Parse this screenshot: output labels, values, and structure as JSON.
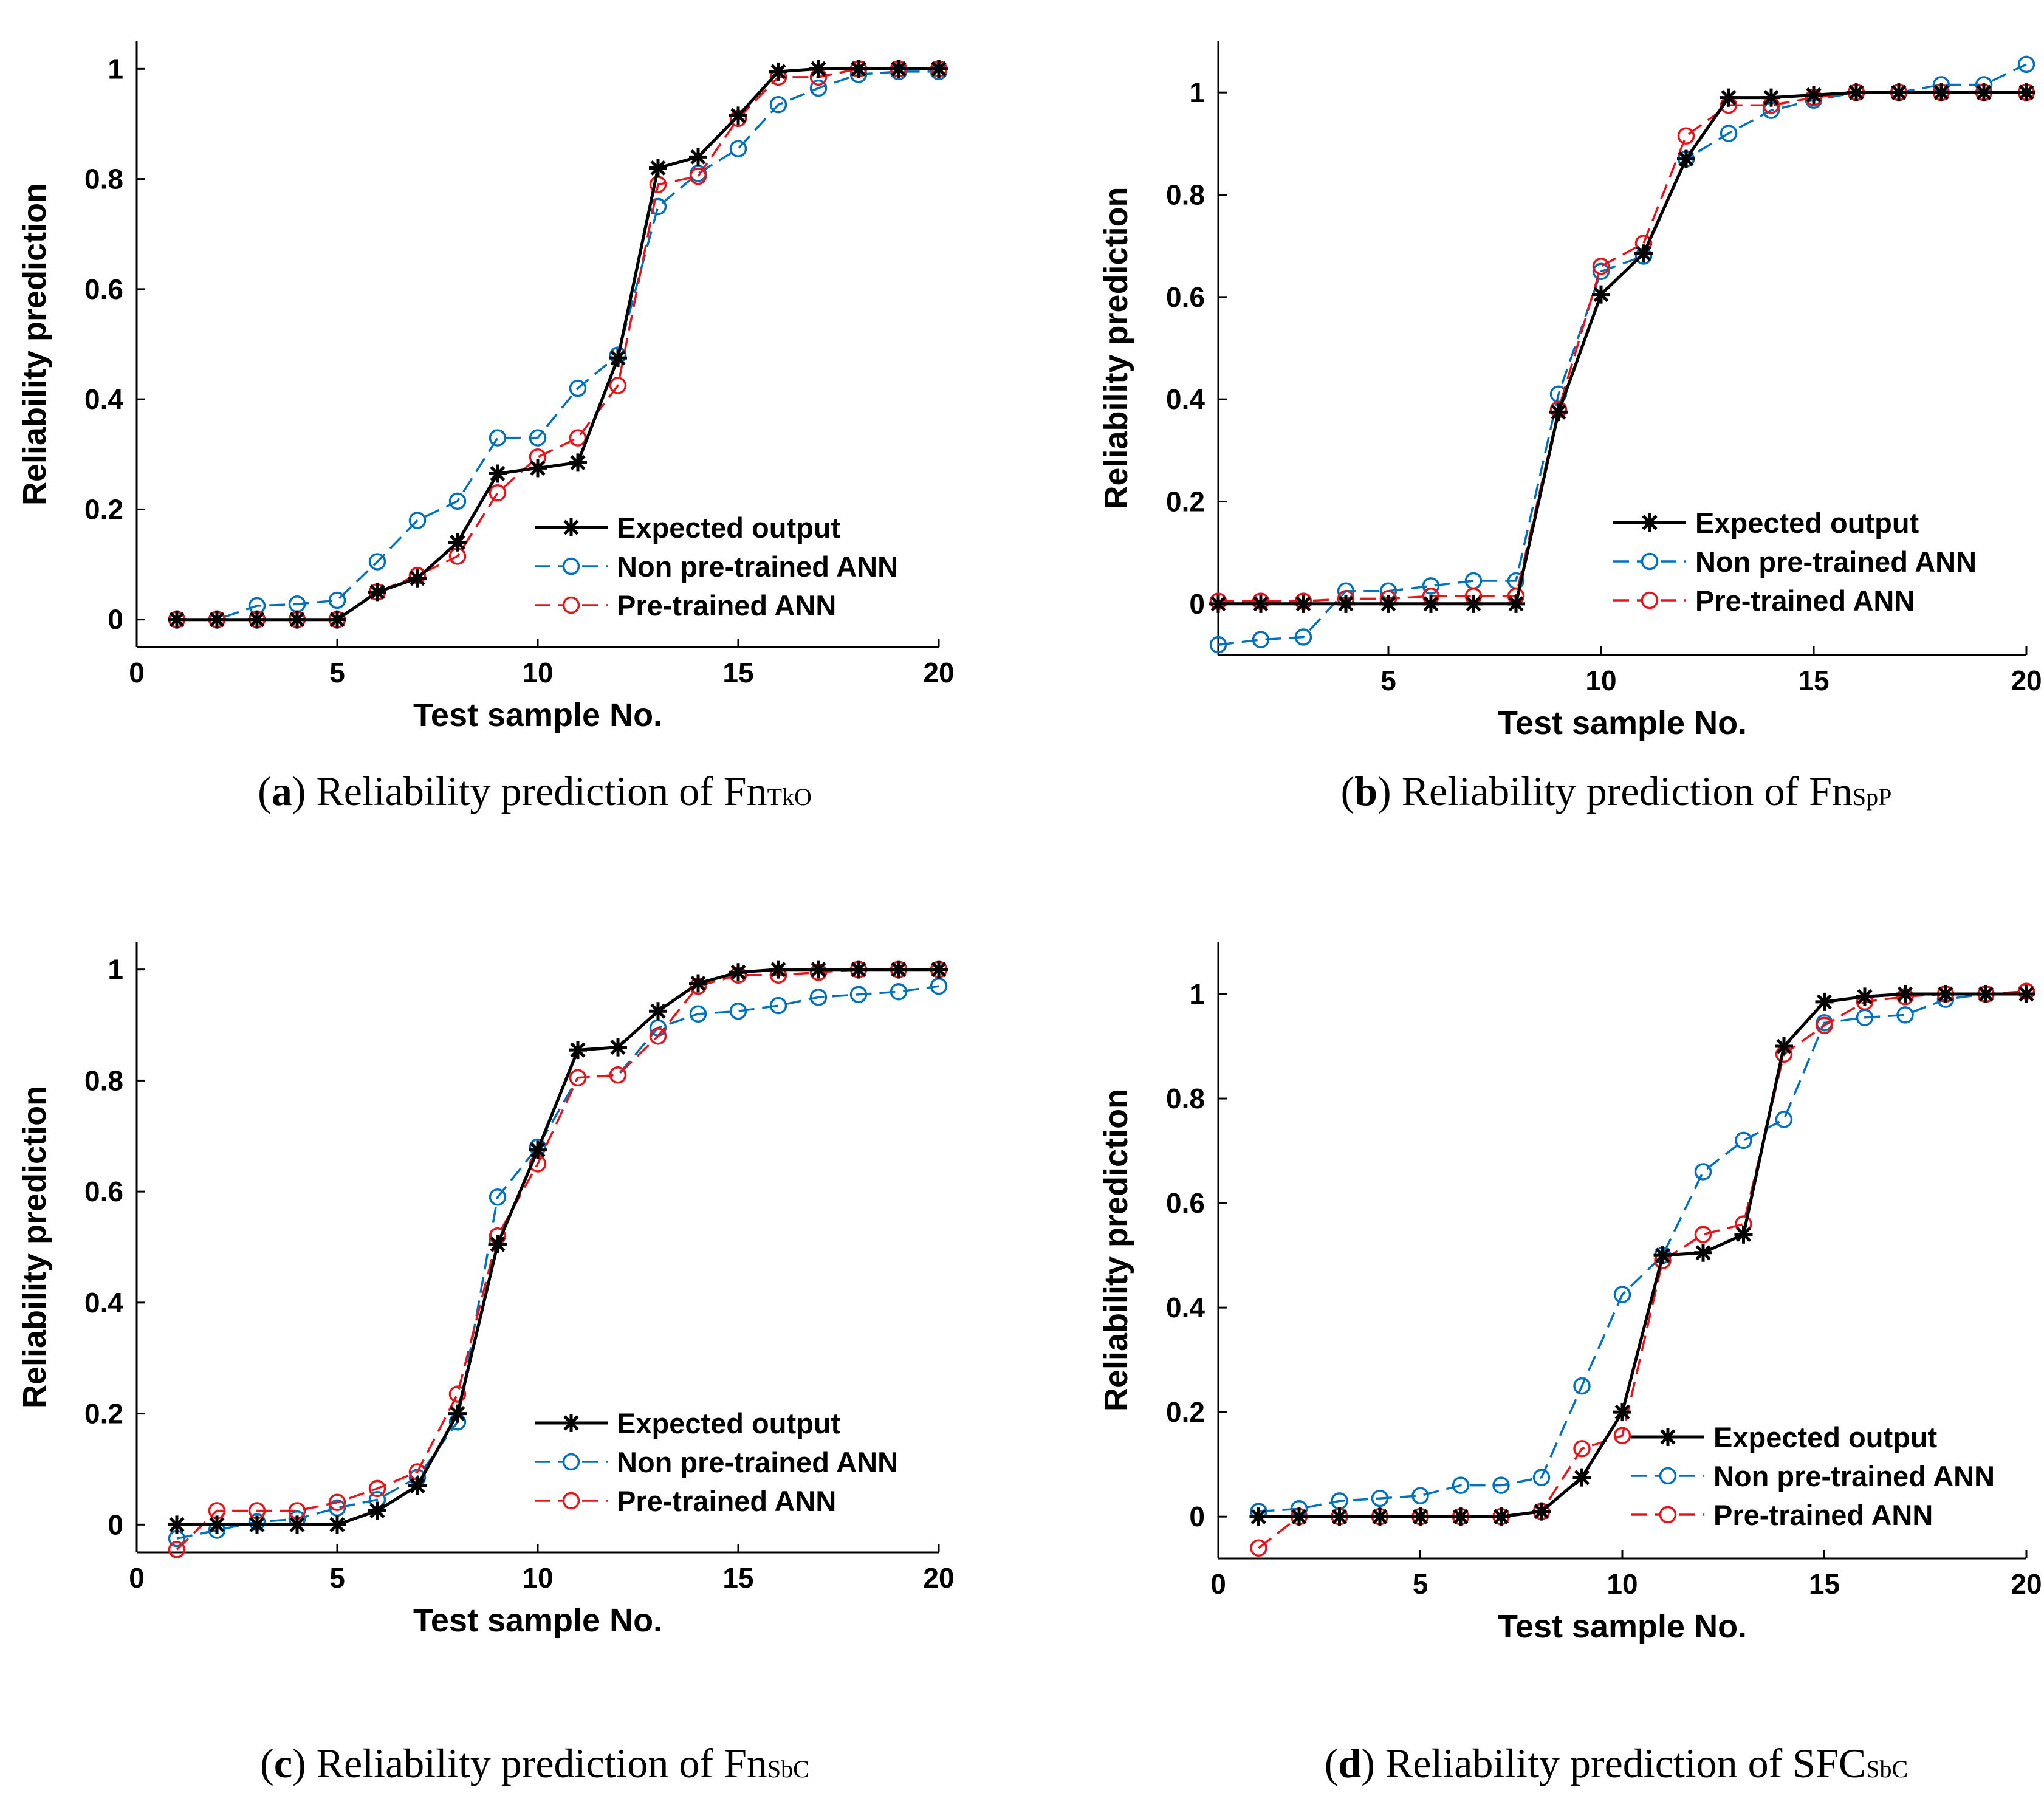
{
  "legend": {
    "expected": "Expected output",
    "non_pretrained": "Non pre-trained ANN",
    "pretrained": "Pre-trained ANN"
  },
  "colors": {
    "expected": "#000000",
    "non_pretrained": "#0072BD",
    "pretrained": "#E8141B"
  },
  "chart_data": [
    {
      "type": "line",
      "panel": "a",
      "caption": {
        "letter": "a",
        "text": "Reliability prediction of Fn",
        "sub": "TkO"
      },
      "xlabel": "Test sample No.",
      "ylabel": "Reliability prediction",
      "xlim": [
        0,
        20
      ],
      "ylim": [
        -0.05,
        1.05
      ],
      "xticks": [
        0,
        5,
        10,
        15,
        20
      ],
      "yticks": [
        0,
        0.2,
        0.4,
        0.6,
        0.8,
        1
      ],
      "ytick_labels": [
        "0",
        "0.2",
        "0.4",
        "0.6",
        "0.8",
        "1"
      ],
      "legend_position": "lower-right",
      "x": [
        1,
        2,
        3,
        4,
        5,
        6,
        7,
        8,
        9,
        10,
        11,
        12,
        13,
        14,
        15,
        16,
        17,
        18,
        19,
        20
      ],
      "series": [
        {
          "name": "Expected output",
          "values": [
            0,
            0,
            0,
            0,
            0,
            0.05,
            0.075,
            0.14,
            0.265,
            0.275,
            0.285,
            0.475,
            0.82,
            0.84,
            0.915,
            0.995,
            1.0,
            1.0,
            1.0,
            1.0
          ]
        },
        {
          "name": "Non pre-trained ANN",
          "values": [
            0,
            0,
            0.025,
            0.028,
            0.035,
            0.105,
            0.18,
            0.215,
            0.33,
            0.33,
            0.42,
            0.48,
            0.75,
            0.81,
            0.855,
            0.935,
            0.965,
            0.99,
            0.995,
            0.995
          ]
        },
        {
          "name": "Pre-trained ANN",
          "values": [
            0,
            0,
            0,
            0,
            0,
            0.05,
            0.08,
            0.115,
            0.23,
            0.295,
            0.33,
            0.425,
            0.79,
            0.805,
            0.91,
            0.985,
            0.985,
            1.0,
            1.0,
            1.0
          ]
        }
      ]
    },
    {
      "type": "line",
      "panel": "b",
      "caption": {
        "letter": "b",
        "text": "Reliability prediction of Fn",
        "sub": "SpP"
      },
      "xlabel": "Test sample No.",
      "ylabel": "Reliability prediction",
      "xlim": [
        1,
        20
      ],
      "ylim": [
        -0.1,
        1.1
      ],
      "xticks": [
        5,
        10,
        15,
        20
      ],
      "yticks": [
        0,
        0.2,
        0.4,
        0.6,
        0.8,
        1
      ],
      "ytick_labels": [
        "0",
        "0.2",
        "0.4",
        "0.6",
        "0.8",
        "1"
      ],
      "legend_position": "lower-right",
      "x": [
        1,
        2,
        3,
        4,
        5,
        6,
        7,
        8,
        9,
        10,
        11,
        12,
        13,
        14,
        15,
        16,
        17,
        18,
        19,
        20
      ],
      "series": [
        {
          "name": "Expected output",
          "values": [
            0,
            0,
            0,
            0,
            0,
            0,
            0,
            0,
            0.375,
            0.605,
            0.685,
            0.87,
            0.99,
            0.99,
            0.995,
            1.0,
            1.0,
            1.0,
            1.0,
            1.0
          ]
        },
        {
          "name": "Non pre-trained ANN",
          "values": [
            -0.08,
            -0.07,
            -0.065,
            0.025,
            0.025,
            0.035,
            0.045,
            0.045,
            0.41,
            0.65,
            0.68,
            0.87,
            0.92,
            0.965,
            0.985,
            1.0,
            1.0,
            1.015,
            1.015,
            1.055
          ]
        },
        {
          "name": "Pre-trained ANN",
          "values": [
            0.005,
            0.005,
            0.005,
            0.01,
            0.01,
            0.015,
            0.015,
            0.015,
            0.38,
            0.66,
            0.705,
            0.915,
            0.975,
            0.975,
            0.99,
            1.0,
            1.0,
            1.0,
            1.0,
            1.0
          ]
        }
      ]
    },
    {
      "type": "line",
      "panel": "c",
      "caption": {
        "letter": "c",
        "text": "Reliability prediction of Fn",
        "sub": "SbC"
      },
      "xlabel": "Test sample No.",
      "ylabel": "Reliability prediction",
      "xlim": [
        0,
        20
      ],
      "ylim": [
        -0.05,
        1.05
      ],
      "xticks": [
        0,
        5,
        10,
        15,
        20
      ],
      "yticks": [
        0,
        0.2,
        0.4,
        0.6,
        0.8,
        1
      ],
      "ytick_labels": [
        "0",
        "0.2",
        "0.4",
        "0.6",
        "0.8",
        "1"
      ],
      "legend_position": "lower-right",
      "x": [
        1,
        2,
        3,
        4,
        5,
        6,
        7,
        8,
        9,
        10,
        11,
        12,
        13,
        14,
        15,
        16,
        17,
        18,
        19,
        20
      ],
      "series": [
        {
          "name": "Expected output",
          "values": [
            0,
            0,
            0,
            0,
            0,
            0.025,
            0.07,
            0.2,
            0.505,
            0.675,
            0.855,
            0.86,
            0.925,
            0.975,
            0.995,
            1.0,
            1.0,
            1.0,
            1.0,
            1.0
          ]
        },
        {
          "name": "Non pre-trained ANN",
          "values": [
            -0.025,
            -0.01,
            0.005,
            0.01,
            0.03,
            0.045,
            0.085,
            0.185,
            0.59,
            0.68,
            0.805,
            0.81,
            0.895,
            0.92,
            0.925,
            0.935,
            0.95,
            0.955,
            0.96,
            0.97
          ]
        },
        {
          "name": "Pre-trained ANN",
          "values": [
            -0.045,
            0.025,
            0.025,
            0.025,
            0.04,
            0.065,
            0.095,
            0.235,
            0.52,
            0.65,
            0.805,
            0.81,
            0.88,
            0.97,
            0.99,
            0.99,
            0.995,
            1.0,
            1.0,
            1.0
          ]
        }
      ]
    },
    {
      "type": "line",
      "panel": "d",
      "caption": {
        "letter": "d",
        "text": "Reliability prediction of SFC",
        "sub": "SbC"
      },
      "xlabel": "Test sample No.",
      "ylabel": "Reliability prediction",
      "xlim": [
        0,
        20
      ],
      "ylim": [
        -0.08,
        1.1
      ],
      "xticks": [
        0,
        5,
        10,
        15,
        20
      ],
      "yticks": [
        0,
        0.2,
        0.4,
        0.6,
        0.8,
        1
      ],
      "ytick_labels": [
        "0",
        "0.2",
        "0.4",
        "0.6",
        "0.8",
        "1"
      ],
      "legend_position": "lower-right",
      "x": [
        1,
        2,
        3,
        4,
        5,
        6,
        7,
        8,
        9,
        10,
        11,
        12,
        13,
        14,
        15,
        16,
        17,
        18,
        19,
        20
      ],
      "series": [
        {
          "name": "Expected output",
          "values": [
            0,
            0,
            0,
            0,
            0,
            0,
            0,
            0.01,
            0.075,
            0.2,
            0.5,
            0.505,
            0.54,
            0.9,
            0.985,
            0.995,
            1.0,
            1.0,
            1.0,
            1.0
          ]
        },
        {
          "name": "Non pre-trained ANN",
          "values": [
            0.01,
            0.015,
            0.03,
            0.035,
            0.04,
            0.06,
            0.06,
            0.075,
            0.25,
            0.425,
            0.5,
            0.66,
            0.72,
            0.76,
            0.945,
            0.955,
            0.96,
            0.99,
            1.0,
            1.005
          ]
        },
        {
          "name": "Pre-trained ANN",
          "values": [
            -0.06,
            0,
            0,
            0,
            0,
            0,
            0,
            0.01,
            0.13,
            0.155,
            0.49,
            0.54,
            0.56,
            0.885,
            0.94,
            0.985,
            0.995,
            1.0,
            1.0,
            1.005
          ]
        }
      ]
    }
  ]
}
